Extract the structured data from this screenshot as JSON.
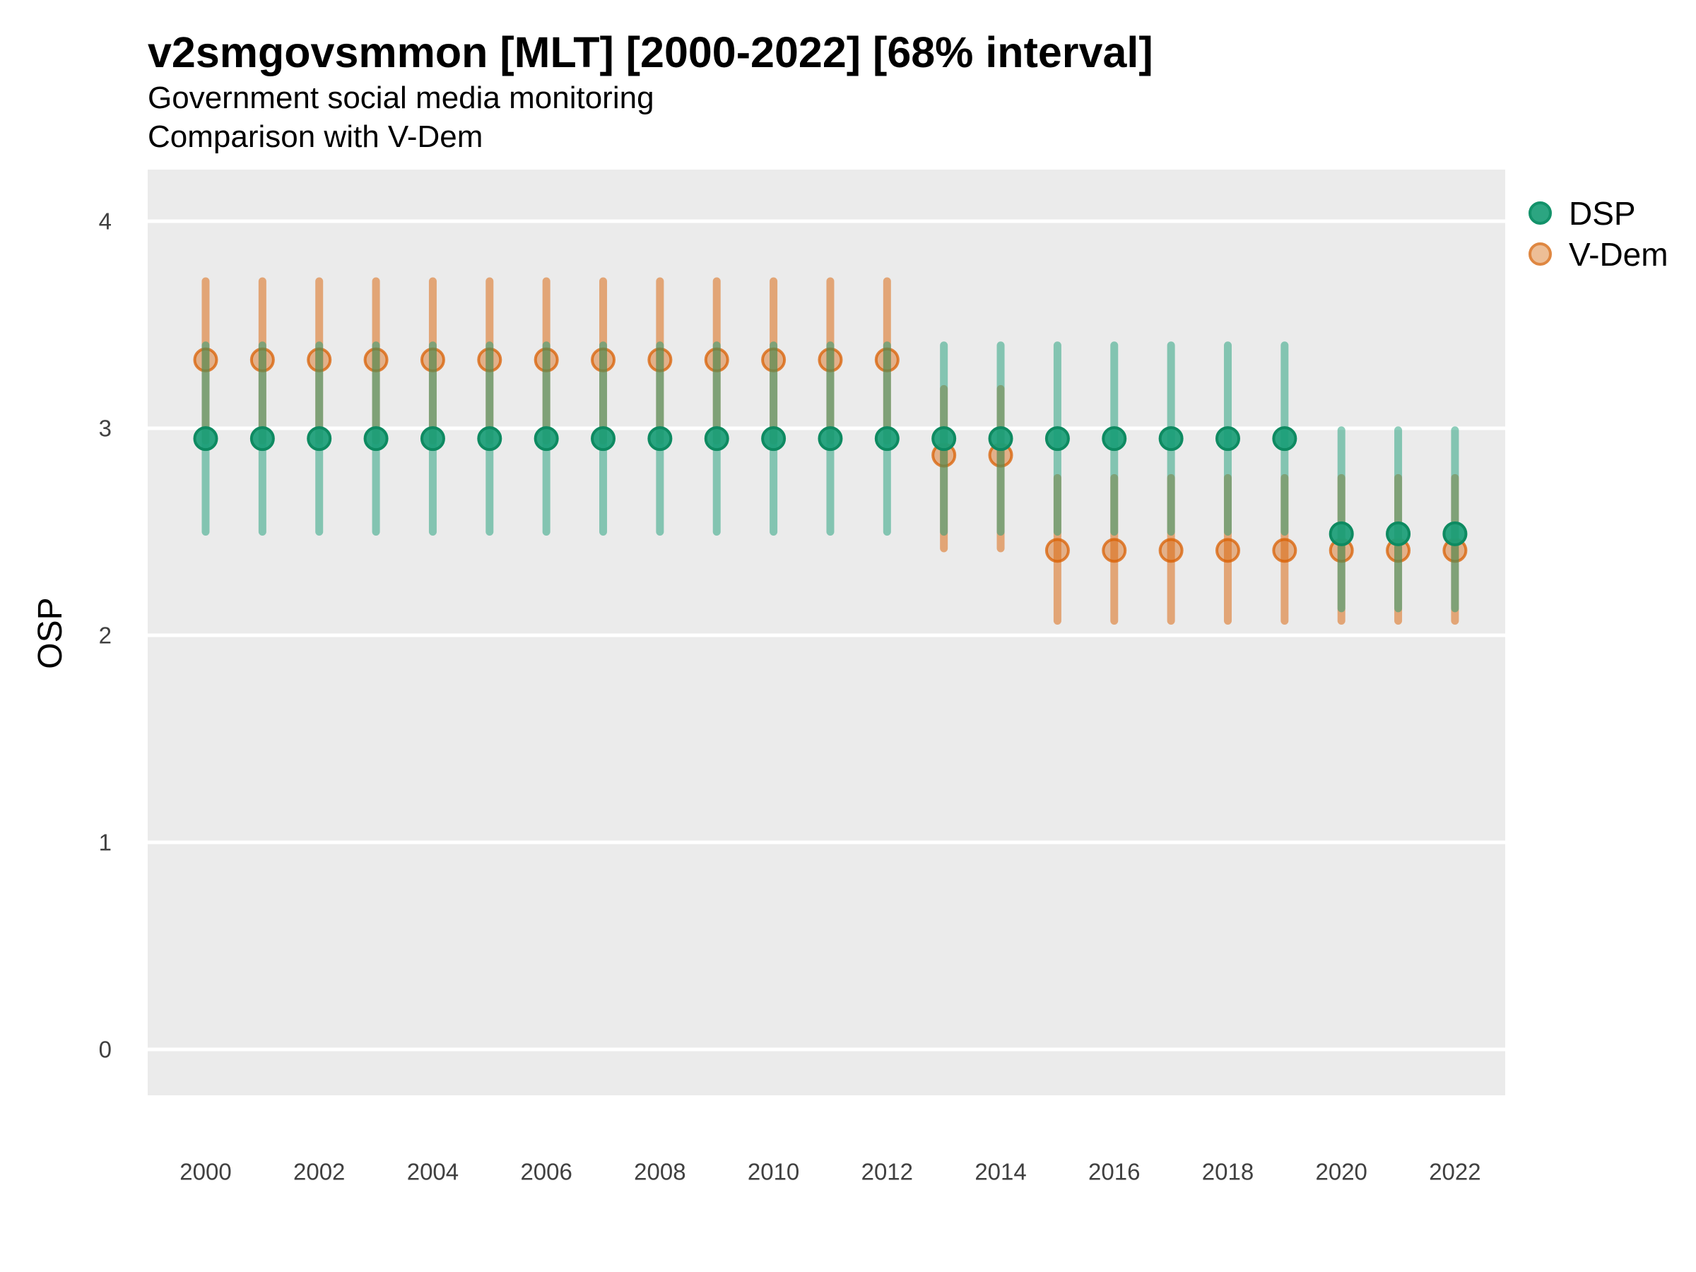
{
  "header": {
    "title": "v2smgovsmmon [MLT] [2000-2022] [68% interval]",
    "subtitle1": "Government social media monitoring",
    "subtitle2": "Comparison with V-Dem"
  },
  "axes": {
    "y_label": "OSP",
    "y_ticks": [
      "0",
      "1",
      "2",
      "3",
      "4"
    ],
    "x_ticks": [
      "2000",
      "2002",
      "2004",
      "2006",
      "2008",
      "2010",
      "2012",
      "2014",
      "2016",
      "2018",
      "2020",
      "2022"
    ]
  },
  "legend": {
    "position": "right-top",
    "items": [
      {
        "label": "DSP",
        "swatch_fill": "#2CA581",
        "swatch_ring": "#13926A"
      },
      {
        "label": "V-Dem",
        "swatch_fill": "#EDBE96",
        "swatch_ring": "#DF8741"
      }
    ]
  },
  "colors": {
    "dsp": "#1B9E77",
    "dsp_point_stroke": "#0E8A61",
    "vdem": "#D95F02",
    "panel_background": "#EBEBEB",
    "gridline": "#FFFFFF",
    "tick_label": "#404040",
    "text": "#000000"
  },
  "chart_data": {
    "type": "pointrange-scatter",
    "title": "v2smgovsmmon [MLT] [2000-2022] [68% interval]",
    "subtitle": [
      "Government social media monitoring",
      "Comparison with V-Dem"
    ],
    "interval_label": "68% interval",
    "xlabel": "",
    "ylabel": "OSP",
    "grid": "horizontal-major-only",
    "panel_background": "#EBEBEB",
    "gridline_color": "#FFFFFF",
    "legend_position": "right-top",
    "ylim_display": [
      -0.22,
      4.25
    ],
    "y_ticks": [
      0,
      1,
      2,
      3,
      4
    ],
    "x_tick_labels": [
      2000,
      2002,
      2004,
      2006,
      2008,
      2010,
      2012,
      2014,
      2016,
      2018,
      2020,
      2022
    ],
    "x": [
      2000,
      2001,
      2002,
      2003,
      2004,
      2005,
      2006,
      2007,
      2008,
      2009,
      2010,
      2011,
      2012,
      2013,
      2014,
      2015,
      2016,
      2017,
      2018,
      2019,
      2020,
      2021,
      2022
    ],
    "series": [
      {
        "name": "V-Dem",
        "color": "#D95F02",
        "line_opacity": 0.5,
        "point_fill_opacity": 0.42,
        "point_stroke_opacity": 0.75,
        "point_stroke": "#D95F02",
        "values": [
          3.33,
          3.33,
          3.33,
          3.33,
          3.33,
          3.33,
          3.33,
          3.33,
          3.33,
          3.33,
          3.33,
          3.33,
          3.33,
          2.87,
          2.87,
          2.41,
          2.41,
          2.41,
          2.41,
          2.41,
          2.41,
          2.41,
          2.41
        ],
        "lower": [
          2.94,
          2.94,
          2.94,
          2.94,
          2.94,
          2.94,
          2.94,
          2.94,
          2.94,
          2.94,
          2.94,
          2.94,
          2.94,
          2.42,
          2.42,
          2.07,
          2.07,
          2.07,
          2.07,
          2.07,
          2.07,
          2.07,
          2.07
        ],
        "upper": [
          3.71,
          3.71,
          3.71,
          3.71,
          3.71,
          3.71,
          3.71,
          3.71,
          3.71,
          3.71,
          3.71,
          3.71,
          3.71,
          3.19,
          3.19,
          2.76,
          2.76,
          2.76,
          2.76,
          2.76,
          2.76,
          2.76,
          2.76
        ]
      },
      {
        "name": "DSP",
        "color": "#1B9E77",
        "line_opacity": 0.5,
        "point_fill_opacity": 0.93,
        "point_stroke_opacity": 1,
        "point_stroke": "#0E8A61",
        "values": [
          2.95,
          2.95,
          2.95,
          2.95,
          2.95,
          2.95,
          2.95,
          2.95,
          2.95,
          2.95,
          2.95,
          2.95,
          2.95,
          2.95,
          2.95,
          2.95,
          2.95,
          2.95,
          2.95,
          2.95,
          2.49,
          2.49,
          2.49
        ],
        "lower": [
          2.5,
          2.5,
          2.5,
          2.5,
          2.5,
          2.5,
          2.5,
          2.5,
          2.5,
          2.5,
          2.5,
          2.5,
          2.5,
          2.5,
          2.5,
          2.5,
          2.5,
          2.5,
          2.5,
          2.5,
          2.13,
          2.13,
          2.13
        ],
        "upper": [
          3.4,
          3.4,
          3.4,
          3.4,
          3.4,
          3.4,
          3.4,
          3.4,
          3.4,
          3.4,
          3.4,
          3.4,
          3.4,
          3.4,
          3.4,
          3.4,
          3.4,
          3.4,
          3.4,
          3.4,
          2.99,
          2.99,
          2.99
        ]
      }
    ]
  }
}
